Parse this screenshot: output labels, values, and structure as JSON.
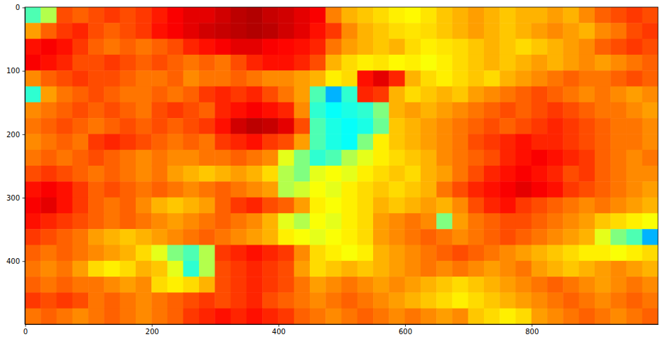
{
  "chart_data": {
    "type": "heatmap",
    "color": "jet",
    "xlim": [
      -0.5,
      999.5
    ],
    "ylim": [
      499.5,
      -0.5
    ],
    "xticks": [
      0,
      200,
      400,
      600,
      800
    ],
    "yticks": [
      0,
      100,
      200,
      300,
      400
    ],
    "color_range": [
      0,
      1
    ],
    "x_edges": [
      -0.5,
      24.5,
      49.5,
      74.5,
      99.5,
      124.5,
      149.5,
      174.5,
      199.5,
      224.5,
      249.5,
      274.5,
      299.5,
      324.5,
      349.5,
      374.5,
      399.5,
      424.5,
      449.5,
      474.5,
      499.5,
      524.5,
      549.5,
      574.5,
      599.5,
      624.5,
      649.5,
      674.5,
      699.5,
      724.5,
      749.5,
      774.5,
      799.5,
      824.5,
      849.5,
      874.5,
      899.5,
      924.5,
      949.5,
      974.5,
      999.5
    ],
    "y_edges": [
      -0.5,
      24.5,
      49.5,
      74.5,
      99.5,
      124.5,
      149.5,
      174.5,
      199.5,
      224.5,
      249.5,
      274.5,
      299.5,
      324.5,
      349.5,
      374.5,
      399.5,
      424.5,
      449.5,
      474.5,
      499.5
    ],
    "cells": [
      [
        0.45,
        0.55,
        0.8,
        0.78,
        0.8,
        0.82,
        0.8,
        0.82,
        0.85,
        0.88,
        0.9,
        0.9,
        0.92,
        0.94,
        0.95,
        0.93,
        0.92,
        0.9,
        0.88,
        0.75,
        0.7,
        0.68,
        0.66,
        0.64,
        0.63,
        0.65,
        0.68,
        0.7,
        0.72,
        0.7,
        0.68,
        0.7,
        0.7,
        0.72,
        0.7,
        0.74,
        0.78,
        0.8,
        0.82,
        0.8
      ],
      [
        0.72,
        0.78,
        0.82,
        0.84,
        0.8,
        0.78,
        0.8,
        0.82,
        0.86,
        0.88,
        0.9,
        0.92,
        0.93,
        0.94,
        0.95,
        0.94,
        0.92,
        0.9,
        0.86,
        0.82,
        0.74,
        0.7,
        0.68,
        0.66,
        0.65,
        0.66,
        0.68,
        0.7,
        0.72,
        0.7,
        0.68,
        0.7,
        0.72,
        0.74,
        0.72,
        0.7,
        0.74,
        0.76,
        0.8,
        0.82
      ],
      [
        0.86,
        0.88,
        0.86,
        0.82,
        0.78,
        0.76,
        0.78,
        0.76,
        0.78,
        0.8,
        0.84,
        0.86,
        0.88,
        0.9,
        0.9,
        0.88,
        0.87,
        0.86,
        0.84,
        0.76,
        0.72,
        0.7,
        0.68,
        0.7,
        0.66,
        0.64,
        0.65,
        0.66,
        0.68,
        0.7,
        0.68,
        0.66,
        0.68,
        0.7,
        0.72,
        0.74,
        0.78,
        0.8,
        0.82,
        0.8
      ],
      [
        0.88,
        0.86,
        0.84,
        0.8,
        0.8,
        0.82,
        0.8,
        0.78,
        0.8,
        0.78,
        0.76,
        0.78,
        0.76,
        0.8,
        0.84,
        0.86,
        0.86,
        0.84,
        0.8,
        0.7,
        0.66,
        0.64,
        0.65,
        0.63,
        0.64,
        0.62,
        0.64,
        0.66,
        0.68,
        0.7,
        0.68,
        0.7,
        0.72,
        0.7,
        0.72,
        0.74,
        0.72,
        0.74,
        0.76,
        0.78
      ],
      [
        0.74,
        0.78,
        0.8,
        0.82,
        0.8,
        0.8,
        0.78,
        0.76,
        0.76,
        0.78,
        0.74,
        0.76,
        0.76,
        0.78,
        0.76,
        0.74,
        0.74,
        0.72,
        0.7,
        0.64,
        0.66,
        0.86,
        0.9,
        0.84,
        0.7,
        0.66,
        0.64,
        0.66,
        0.68,
        0.66,
        0.7,
        0.72,
        0.74,
        0.76,
        0.78,
        0.76,
        0.76,
        0.78,
        0.8,
        0.78
      ],
      [
        0.42,
        0.72,
        0.76,
        0.78,
        0.8,
        0.78,
        0.76,
        0.76,
        0.78,
        0.76,
        0.78,
        0.82,
        0.84,
        0.82,
        0.84,
        0.8,
        0.76,
        0.72,
        0.45,
        0.3,
        0.42,
        0.84,
        0.82,
        0.7,
        0.66,
        0.68,
        0.7,
        0.68,
        0.72,
        0.74,
        0.76,
        0.78,
        0.8,
        0.78,
        0.76,
        0.74,
        0.76,
        0.74,
        0.72,
        0.74
      ],
      [
        0.74,
        0.76,
        0.78,
        0.8,
        0.78,
        0.8,
        0.78,
        0.76,
        0.8,
        0.82,
        0.8,
        0.78,
        0.84,
        0.86,
        0.88,
        0.86,
        0.84,
        0.74,
        0.42,
        0.38,
        0.4,
        0.42,
        0.5,
        0.7,
        0.72,
        0.7,
        0.72,
        0.74,
        0.76,
        0.78,
        0.8,
        0.78,
        0.8,
        0.82,
        0.8,
        0.78,
        0.76,
        0.76,
        0.74,
        0.72
      ],
      [
        0.76,
        0.78,
        0.8,
        0.78,
        0.76,
        0.78,
        0.8,
        0.78,
        0.8,
        0.78,
        0.8,
        0.82,
        0.86,
        0.92,
        0.94,
        0.93,
        0.9,
        0.8,
        0.45,
        0.4,
        0.38,
        0.4,
        0.48,
        0.68,
        0.7,
        0.72,
        0.74,
        0.76,
        0.78,
        0.8,
        0.78,
        0.8,
        0.82,
        0.84,
        0.82,
        0.8,
        0.78,
        0.76,
        0.76,
        0.74
      ],
      [
        0.74,
        0.76,
        0.78,
        0.76,
        0.82,
        0.84,
        0.82,
        0.8,
        0.78,
        0.76,
        0.78,
        0.76,
        0.82,
        0.84,
        0.86,
        0.82,
        0.8,
        0.72,
        0.45,
        0.4,
        0.38,
        0.5,
        0.64,
        0.68,
        0.7,
        0.72,
        0.74,
        0.76,
        0.8,
        0.82,
        0.84,
        0.86,
        0.84,
        0.84,
        0.82,
        0.8,
        0.78,
        0.76,
        0.76,
        0.74
      ],
      [
        0.76,
        0.78,
        0.76,
        0.78,
        0.8,
        0.78,
        0.76,
        0.74,
        0.76,
        0.74,
        0.74,
        0.76,
        0.76,
        0.78,
        0.76,
        0.74,
        0.6,
        0.5,
        0.42,
        0.45,
        0.55,
        0.6,
        0.64,
        0.66,
        0.68,
        0.7,
        0.74,
        0.76,
        0.78,
        0.8,
        0.84,
        0.86,
        0.88,
        0.86,
        0.84,
        0.82,
        0.78,
        0.76,
        0.74,
        0.76
      ],
      [
        0.8,
        0.82,
        0.8,
        0.78,
        0.76,
        0.78,
        0.76,
        0.74,
        0.76,
        0.72,
        0.7,
        0.68,
        0.7,
        0.72,
        0.7,
        0.66,
        0.55,
        0.5,
        0.6,
        0.62,
        0.6,
        0.64,
        0.66,
        0.68,
        0.66,
        0.7,
        0.72,
        0.76,
        0.8,
        0.84,
        0.86,
        0.88,
        0.86,
        0.84,
        0.8,
        0.82,
        0.78,
        0.76,
        0.74,
        0.74
      ],
      [
        0.86,
        0.88,
        0.86,
        0.82,
        0.78,
        0.8,
        0.78,
        0.76,
        0.78,
        0.76,
        0.74,
        0.76,
        0.78,
        0.76,
        0.74,
        0.72,
        0.55,
        0.58,
        0.62,
        0.6,
        0.64,
        0.66,
        0.68,
        0.66,
        0.68,
        0.7,
        0.76,
        0.8,
        0.84,
        0.86,
        0.88,
        0.9,
        0.88,
        0.86,
        0.82,
        0.8,
        0.78,
        0.76,
        0.74,
        0.72
      ],
      [
        0.88,
        0.9,
        0.86,
        0.82,
        0.78,
        0.76,
        0.78,
        0.74,
        0.7,
        0.68,
        0.7,
        0.72,
        0.78,
        0.82,
        0.84,
        0.8,
        0.78,
        0.72,
        0.64,
        0.62,
        0.64,
        0.66,
        0.7,
        0.68,
        0.7,
        0.72,
        0.7,
        0.74,
        0.8,
        0.84,
        0.86,
        0.82,
        0.8,
        0.78,
        0.76,
        0.74,
        0.76,
        0.74,
        0.72,
        0.7
      ],
      [
        0.86,
        0.84,
        0.82,
        0.8,
        0.78,
        0.76,
        0.78,
        0.76,
        0.74,
        0.72,
        0.74,
        0.76,
        0.78,
        0.76,
        0.74,
        0.7,
        0.6,
        0.55,
        0.62,
        0.6,
        0.64,
        0.66,
        0.72,
        0.74,
        0.76,
        0.74,
        0.5,
        0.72,
        0.76,
        0.78,
        0.8,
        0.8,
        0.78,
        0.76,
        0.74,
        0.72,
        0.68,
        0.66,
        0.64,
        0.62
      ],
      [
        0.82,
        0.8,
        0.78,
        0.76,
        0.72,
        0.7,
        0.68,
        0.7,
        0.72,
        0.74,
        0.76,
        0.78,
        0.76,
        0.74,
        0.72,
        0.7,
        0.64,
        0.62,
        0.6,
        0.62,
        0.64,
        0.66,
        0.72,
        0.74,
        0.76,
        0.78,
        0.76,
        0.74,
        0.76,
        0.78,
        0.8,
        0.78,
        0.76,
        0.74,
        0.72,
        0.7,
        0.6,
        0.5,
        0.45,
        0.3
      ],
      [
        0.78,
        0.76,
        0.78,
        0.76,
        0.74,
        0.72,
        0.7,
        0.66,
        0.6,
        0.5,
        0.45,
        0.55,
        0.82,
        0.84,
        0.86,
        0.84,
        0.82,
        0.74,
        0.66,
        0.64,
        0.62,
        0.64,
        0.7,
        0.72,
        0.74,
        0.76,
        0.78,
        0.8,
        0.78,
        0.76,
        0.74,
        0.72,
        0.7,
        0.68,
        0.66,
        0.64,
        0.64,
        0.62,
        0.64,
        0.66
      ],
      [
        0.76,
        0.74,
        0.76,
        0.72,
        0.66,
        0.64,
        0.66,
        0.7,
        0.68,
        0.6,
        0.42,
        0.55,
        0.8,
        0.82,
        0.84,
        0.82,
        0.8,
        0.72,
        0.66,
        0.68,
        0.7,
        0.68,
        0.7,
        0.72,
        0.74,
        0.76,
        0.74,
        0.76,
        0.74,
        0.72,
        0.74,
        0.76,
        0.72,
        0.7,
        0.68,
        0.7,
        0.72,
        0.74,
        0.72,
        0.7
      ],
      [
        0.78,
        0.76,
        0.78,
        0.76,
        0.76,
        0.74,
        0.72,
        0.74,
        0.66,
        0.64,
        0.66,
        0.7,
        0.8,
        0.82,
        0.84,
        0.82,
        0.8,
        0.76,
        0.72,
        0.74,
        0.76,
        0.74,
        0.72,
        0.74,
        0.72,
        0.7,
        0.68,
        0.66,
        0.68,
        0.7,
        0.72,
        0.74,
        0.76,
        0.78,
        0.76,
        0.74,
        0.72,
        0.74,
        0.76,
        0.74
      ],
      [
        0.82,
        0.8,
        0.82,
        0.8,
        0.76,
        0.78,
        0.76,
        0.74,
        0.76,
        0.78,
        0.8,
        0.82,
        0.8,
        0.82,
        0.84,
        0.8,
        0.78,
        0.76,
        0.74,
        0.76,
        0.78,
        0.76,
        0.74,
        0.72,
        0.7,
        0.68,
        0.66,
        0.64,
        0.66,
        0.68,
        0.7,
        0.72,
        0.74,
        0.76,
        0.78,
        0.76,
        0.74,
        0.76,
        0.78,
        0.76
      ],
      [
        0.76,
        0.78,
        0.76,
        0.74,
        0.76,
        0.78,
        0.76,
        0.74,
        0.76,
        0.78,
        0.82,
        0.84,
        0.86,
        0.84,
        0.86,
        0.84,
        0.82,
        0.78,
        0.76,
        0.74,
        0.76,
        0.78,
        0.76,
        0.74,
        0.76,
        0.74,
        0.72,
        0.74,
        0.68,
        0.66,
        0.64,
        0.66,
        0.72,
        0.74,
        0.76,
        0.78,
        0.76,
        0.74,
        0.76,
        0.78
      ]
    ]
  }
}
